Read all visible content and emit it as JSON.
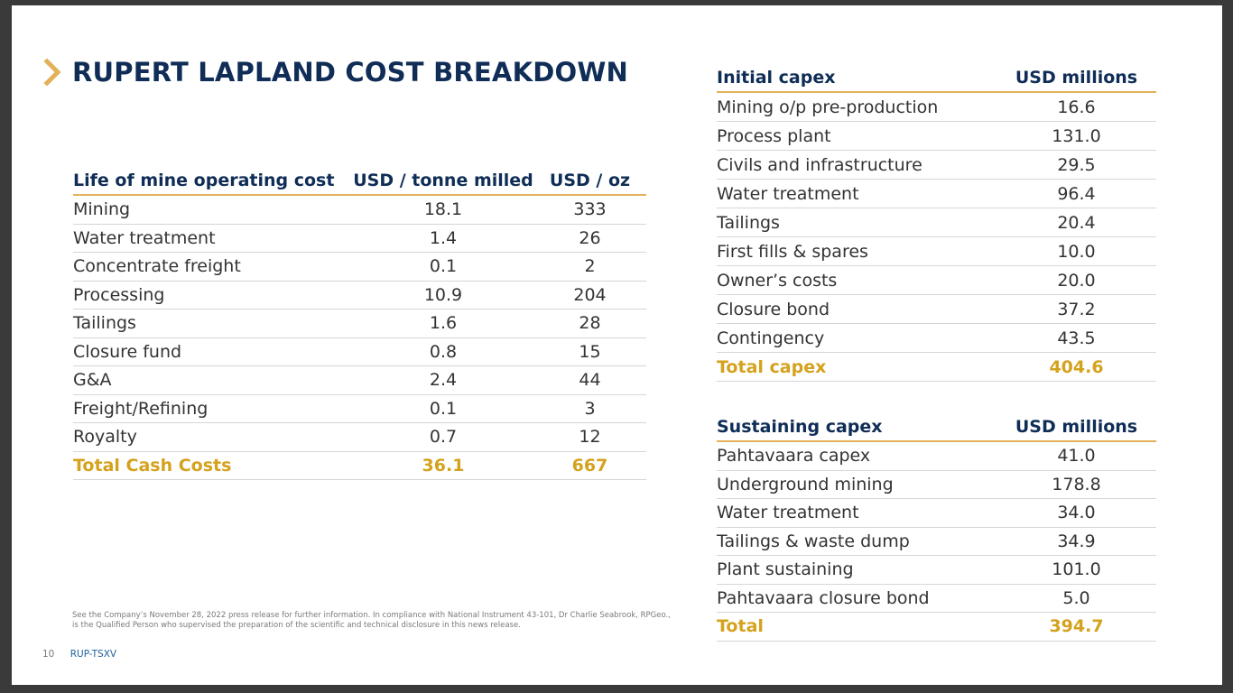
{
  "slide": {
    "title": "RUPERT LAPLAND COST BREAKDOWN",
    "accent_color": "#e2b25a",
    "title_color": "#0f2d56",
    "total_color": "#d4a21d"
  },
  "opex": {
    "headers": [
      "Life of mine operating cost",
      "USD / tonne milled",
      "USD / oz"
    ],
    "rows": [
      [
        "Mining",
        "18.1",
        "333"
      ],
      [
        "Water treatment",
        "1.4",
        "26"
      ],
      [
        "Concentrate freight",
        "0.1",
        "2"
      ],
      [
        "Processing",
        "10.9",
        "204"
      ],
      [
        "Tailings",
        "1.6",
        "28"
      ],
      [
        "Closure fund",
        "0.8",
        "15"
      ],
      [
        "G&A",
        "2.4",
        "44"
      ],
      [
        "Freight/Refining",
        "0.1",
        "3"
      ],
      [
        "Royalty",
        "0.7",
        "12"
      ]
    ],
    "total": [
      "Total Cash Costs",
      "36.1",
      "667"
    ]
  },
  "initial_capex": {
    "headers": [
      "Initial capex",
      "USD millions"
    ],
    "rows": [
      [
        "Mining o/p pre-production",
        "16.6"
      ],
      [
        "Process plant",
        "131.0"
      ],
      [
        "Civils and infrastructure",
        "29.5"
      ],
      [
        "Water treatment",
        "96.4"
      ],
      [
        "Tailings",
        "20.4"
      ],
      [
        "First fills & spares",
        "10.0"
      ],
      [
        "Owner’s costs",
        "20.0"
      ],
      [
        "Closure bond",
        "37.2"
      ],
      [
        "Contingency",
        "43.5"
      ]
    ],
    "total": [
      "Total capex",
      "404.6"
    ]
  },
  "sustaining_capex": {
    "headers": [
      "Sustaining capex",
      "USD millions"
    ],
    "rows": [
      [
        "Pahtavaara capex",
        "41.0"
      ],
      [
        "Underground mining",
        "178.8"
      ],
      [
        "Water treatment",
        "34.0"
      ],
      [
        "Tailings & waste dump",
        "34.9"
      ],
      [
        "Plant sustaining",
        "101.0"
      ],
      [
        "Pahtavaara closure bond",
        "5.0"
      ]
    ],
    "total": [
      "Total",
      "394.7"
    ]
  },
  "footnote": "See the Company’s November 28, 2022 press release for further information. In compliance with National Instrument 43-101, Dr Charlie Seabrook, RPGeo., is the Qualified Person who supervised the preparation of the scientific and technical disclosure in this news release.",
  "footer": {
    "page_number": "10",
    "ticker": "RUP-TSXV"
  }
}
